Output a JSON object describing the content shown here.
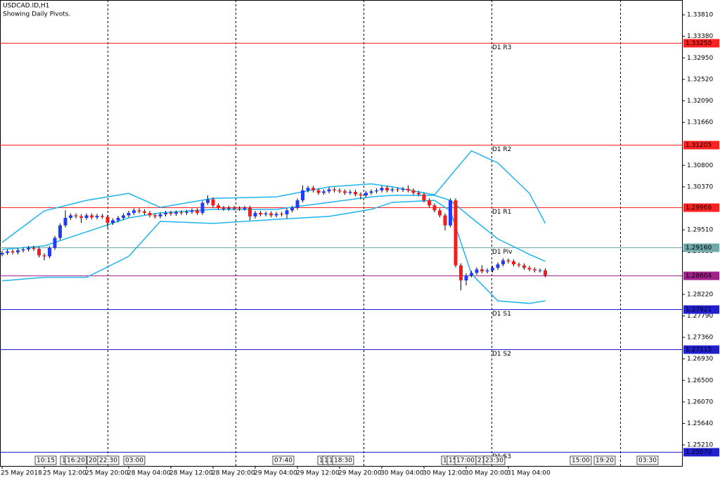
{
  "chart_data": {
    "type": "candlestick",
    "title": "USDCAD.ID,H1",
    "subtitle": "Showing Daily Pivots.",
    "ylim": [
      1.24789,
      1.34107
    ],
    "yticks": [
      {
        "value": 1.3381,
        "label": "1.33810"
      },
      {
        "value": 1.3338,
        "label": "1.33380"
      },
      {
        "value": 1.3295,
        "label": "1.32950"
      },
      {
        "value": 1.3252,
        "label": "1.32520"
      },
      {
        "value": 1.3209,
        "label": "1.32090"
      },
      {
        "value": 1.3166,
        "label": "1.31660"
      },
      {
        "value": 1.308,
        "label": "1.30800"
      },
      {
        "value": 1.3037,
        "label": "1.30370"
      },
      {
        "value": 1.2951,
        "label": "1.29510"
      },
      {
        "value": 1.2908,
        "label": "1.29080"
      },
      {
        "value": 1.2822,
        "label": "1.28220"
      },
      {
        "value": 1.2779,
        "label": "1.27790"
      },
      {
        "value": 1.2736,
        "label": "1.27360"
      },
      {
        "value": 1.2693,
        "label": "1.26930"
      },
      {
        "value": 1.265,
        "label": "1.26500"
      },
      {
        "value": 1.2607,
        "label": "1.26070"
      },
      {
        "value": 1.2564,
        "label": "1.25640"
      },
      {
        "value": 1.2521,
        "label": "1.25210"
      }
    ],
    "x_labels": [
      "25 May 2018",
      "25 May 12:00",
      "25 May 20:00",
      "28 May 04:00",
      "28 May 12:00",
      "28 May 20:00",
      "29 May 04:00",
      "29 May 12:00",
      "29 May 20:00",
      "30 May 04:00",
      "30 May 12:00",
      "30 May 20:00",
      "31 May 04:00"
    ],
    "up_color": "#1f3cff",
    "down_color": "#ff1a1a",
    "open": [
      1.2902,
      1.2905,
      1.2908,
      1.2906,
      1.291,
      1.2912,
      1.2915,
      1.2913,
      1.29,
      1.2898,
      1.2915,
      1.2935,
      1.296,
      1.2975,
      1.298,
      1.2978,
      1.2975,
      1.298,
      1.2976,
      1.2979,
      1.2977,
      1.2965,
      1.297,
      1.2975,
      1.298,
      1.2985,
      1.299,
      1.2988,
      1.2985,
      1.298,
      1.2978,
      1.2982,
      1.2985,
      1.2983,
      1.2986,
      1.2985,
      1.2987,
      1.299,
      1.2985,
      1.3005,
      1.3012,
      1.3,
      1.2995,
      1.2993,
      1.2995,
      1.2994,
      1.2993,
      1.2995,
      1.2978,
      1.2985,
      1.2982,
      1.2984,
      1.298,
      1.2983,
      1.2982,
      1.299,
      1.2995,
      1.301,
      1.303,
      1.3035,
      1.303,
      1.3025,
      1.3028,
      1.3032,
      1.303,
      1.3028,
      1.3025,
      1.3027,
      1.3022,
      1.302,
      1.3025,
      1.3028,
      1.303,
      1.3035,
      1.303,
      1.3032,
      1.3031,
      1.3033,
      1.303,
      1.3025,
      1.3022,
      1.301,
      1.3,
      1.299,
      1.298,
      1.296,
      1.301,
      1.288,
      1.285,
      1.286,
      1.2865,
      1.2872,
      1.2868,
      1.287,
      1.2875,
      1.2882,
      1.289,
      1.2888,
      1.2882,
      1.288,
      1.2875,
      1.2872,
      1.287,
      1.287
    ],
    "high": [
      1.2909,
      1.2912,
      1.2912,
      1.2914,
      1.2916,
      1.2919,
      1.2919,
      1.2917,
      1.2904,
      1.2919,
      1.2939,
      1.2964,
      1.299,
      1.2984,
      1.2984,
      1.2982,
      1.2984,
      1.2984,
      1.2983,
      1.2983,
      1.2981,
      1.2974,
      1.2979,
      1.2984,
      1.2989,
      1.2994,
      1.2994,
      1.2992,
      1.2989,
      1.2984,
      1.2986,
      1.2989,
      1.2989,
      1.299,
      1.299,
      1.2991,
      1.2994,
      1.2994,
      1.3009,
      1.302,
      1.3016,
      1.3004,
      1.2999,
      1.2999,
      1.2999,
      1.2998,
      1.2999,
      1.2999,
      1.2989,
      1.2989,
      1.2988,
      1.2988,
      1.2987,
      1.2987,
      1.2994,
      1.2999,
      1.3014,
      1.304,
      1.3039,
      1.3039,
      1.3034,
      1.3032,
      1.3036,
      1.3036,
      1.3034,
      1.3032,
      1.3031,
      1.3031,
      1.3026,
      1.3029,
      1.3032,
      1.3034,
      1.3039,
      1.3039,
      1.3036,
      1.3036,
      1.3037,
      1.304,
      1.3034,
      1.3029,
      1.3026,
      1.3014,
      1.3004,
      1.2994,
      1.2984,
      1.3014,
      1.3014,
      1.2884,
      1.2864,
      1.2869,
      1.2876,
      1.288,
      1.2874,
      1.2879,
      1.2886,
      1.2894,
      1.2894,
      1.2892,
      1.2886,
      1.2884,
      1.2879,
      1.2876,
      1.2874,
      1.2874
    ],
    "low": [
      1.2898,
      1.2901,
      1.2902,
      1.2902,
      1.2906,
      1.2908,
      1.2909,
      1.2896,
      1.289,
      1.2894,
      1.2911,
      1.2931,
      1.2956,
      1.2971,
      1.2974,
      1.2965,
      1.2971,
      1.2972,
      1.2972,
      1.2973,
      1.2955,
      1.2961,
      1.2966,
      1.2971,
      1.2976,
      1.2981,
      1.2984,
      1.2981,
      1.2976,
      1.2974,
      1.2974,
      1.2978,
      1.2979,
      1.2979,
      1.2981,
      1.2981,
      1.2983,
      1.2981,
      1.2981,
      1.3001,
      1.2996,
      1.2991,
      1.2989,
      1.2989,
      1.299,
      1.2989,
      1.2989,
      1.297,
      1.2974,
      1.2978,
      1.2978,
      1.2976,
      1.2976,
      1.2978,
      1.2974,
      1.2986,
      1.2991,
      1.3006,
      1.3026,
      1.3026,
      1.3021,
      1.3021,
      1.3024,
      1.3026,
      1.3024,
      1.3021,
      1.3021,
      1.3018,
      1.3012,
      1.3016,
      1.3021,
      1.3024,
      1.3026,
      1.3026,
      1.3026,
      1.3027,
      1.3027,
      1.3026,
      1.3021,
      1.3018,
      1.3006,
      1.2996,
      1.2986,
      1.2976,
      1.295,
      1.2956,
      1.2876,
      1.283,
      1.284,
      1.2856,
      1.2861,
      1.2864,
      1.2864,
      1.2866,
      1.2871,
      1.2878,
      1.2884,
      1.2878,
      1.2876,
      1.2871,
      1.2868,
      1.2866,
      1.2866,
      1.2856
    ],
    "close": [
      1.2905,
      1.2908,
      1.2906,
      1.291,
      1.2912,
      1.2915,
      1.2913,
      1.29,
      1.2898,
      1.2915,
      1.2935,
      1.296,
      1.2975,
      1.298,
      1.2978,
      1.2975,
      1.298,
      1.2976,
      1.2979,
      1.2977,
      1.2965,
      1.297,
      1.2975,
      1.298,
      1.2985,
      1.299,
      1.2988,
      1.2985,
      1.298,
      1.2978,
      1.2982,
      1.2985,
      1.2983,
      1.2986,
      1.2985,
      1.2987,
      1.299,
      1.2985,
      1.3005,
      1.3012,
      1.3,
      1.2995,
      1.2993,
      1.2995,
      1.2994,
      1.2993,
      1.2995,
      1.2978,
      1.2985,
      1.2982,
      1.2984,
      1.298,
      1.2983,
      1.2982,
      1.299,
      1.2995,
      1.301,
      1.303,
      1.3035,
      1.303,
      1.3025,
      1.3028,
      1.3032,
      1.303,
      1.3028,
      1.3025,
      1.3027,
      1.3022,
      1.302,
      1.3025,
      1.3028,
      1.303,
      1.3035,
      1.303,
      1.3032,
      1.3031,
      1.3033,
      1.303,
      1.3025,
      1.3022,
      1.301,
      1.3,
      1.299,
      1.298,
      1.296,
      1.301,
      1.288,
      1.285,
      1.286,
      1.2865,
      1.2872,
      1.2868,
      1.287,
      1.2875,
      1.2882,
      1.289,
      1.2888,
      1.2882,
      1.288,
      1.2875,
      1.2872,
      1.287,
      1.287,
      1.286
    ],
    "bands": {
      "color": "#1fb4f0",
      "x": [
        0,
        8,
        16,
        24,
        30,
        40,
        52,
        62,
        70,
        74,
        82,
        85,
        89,
        94,
        100,
        103
      ],
      "upper": [
        1.2926,
        1.2989,
        1.301,
        1.3024,
        1.2996,
        1.3014,
        1.3017,
        1.3037,
        1.3043,
        1.3037,
        1.3021,
        1.3059,
        1.3109,
        1.3085,
        1.3024,
        1.2964
      ],
      "middle": [
        1.2912,
        1.2919,
        1.2947,
        1.2975,
        1.2985,
        1.2992,
        1.2992,
        1.3006,
        1.3017,
        1.302,
        1.302,
        1.301,
        1.2975,
        1.2933,
        1.2902,
        1.2888
      ],
      "lower": [
        1.2849,
        1.2856,
        1.2856,
        1.2898,
        1.2968,
        1.2964,
        1.2972,
        1.2978,
        1.2992,
        1.3006,
        1.301,
        1.2989,
        1.2863,
        1.2809,
        1.2804,
        1.2809
      ]
    },
    "levels": [
      {
        "name": "D1 R3",
        "value": 1.3325,
        "label": "1.33250",
        "color": "#ff2020"
      },
      {
        "name": "D1 R2",
        "value": 1.31205,
        "label": "1.31205",
        "color": "#ff2020"
      },
      {
        "name": "D1 R1",
        "value": 1.29966,
        "label": "1.29966",
        "color": "#ff2020"
      },
      {
        "name": "D1 Piv",
        "value": 1.2916,
        "label": "1.29160",
        "color": "#6fa8a8"
      },
      {
        "value": 1.28604,
        "label": "1.28604",
        "color": "#a0208c"
      },
      {
        "name": "D1 S1",
        "value": 1.27921,
        "label": "1.27921",
        "color": "#2020d0"
      },
      {
        "name": "D1 S2",
        "value": 1.27115,
        "label": "1.27115",
        "color": "#2020d0"
      },
      {
        "name": "D1 S3",
        "value": 1.2507,
        "label": "1.25070",
        "color": "#2020d0"
      }
    ],
    "time_flags": [
      "10:15",
      "1",
      "16:20",
      "20:",
      "22:30",
      "03:00",
      "07:40",
      "1",
      "1",
      "1",
      "18:30",
      "1",
      "15:",
      "17:00",
      "21:",
      "23:30",
      "15:00",
      "19:20",
      "03:30"
    ]
  }
}
